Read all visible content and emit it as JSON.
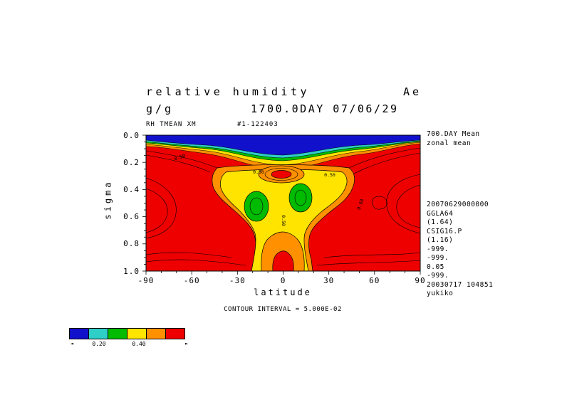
{
  "header": {
    "title": "relative humidity",
    "title_right": "Ae",
    "units": "g/g",
    "timestamp": "1700.0DAY 07/06/29",
    "var_id": "RH TMEAN XM",
    "run_id": "#1-122403"
  },
  "axes": {
    "ylabel": "sigma",
    "xlabel": "latitude",
    "yticks": [
      "0.0",
      "0.2",
      "0.4",
      "0.6",
      "0.8",
      "1.0"
    ],
    "xticks": [
      "-90",
      "-60",
      "-30",
      "0",
      "30",
      "60",
      "90"
    ]
  },
  "right_panel": {
    "lines": [
      "700.DAY Mean",
      "zonal mean"
    ],
    "meta": [
      "20070629000000",
      "GGLA64",
      "(1.64)",
      "CSIG16.P",
      "(1.16)",
      "-999.",
      "-999.",
      "0.05",
      "-999.",
      "20030717 104851",
      "yukiko"
    ]
  },
  "footer": {
    "contour_interval": "CONTOUR INTERVAL = 5.000E-02"
  },
  "palette": {
    "red": "#ee0000",
    "orange": "#ff9000",
    "yellow": "#ffe400",
    "green": "#00bb00",
    "cyan": "#2ecfc7",
    "blue": "#1111cc"
  },
  "colorbar": {
    "colors": [
      "#1111cc",
      "#2ecfc7",
      "#00bb00",
      "#ffe400",
      "#ff9000",
      "#ee0000"
    ],
    "labels": [
      "0.20",
      "0.40"
    ],
    "left_arrow": "◄",
    "right_arrow": "►"
  },
  "chart_data": {
    "type": "heatmap",
    "subtype": "filled-contour",
    "title": "relative humidity",
    "subtitle": "1700.0DAY 07/06/29",
    "annotation_right": "Ae",
    "variable": "RH TMEAN XM",
    "units": "g/g",
    "xlabel": "latitude",
    "ylabel": "sigma",
    "xlim": [
      -90,
      90
    ],
    "ylim_top_to_bottom": [
      0.0,
      1.0
    ],
    "xtick_values": [
      -90,
      -60,
      -30,
      0,
      30,
      60,
      90
    ],
    "ytick_values": [
      0.0,
      0.2,
      0.4,
      0.6,
      0.8,
      1.0
    ],
    "contour_interval": 0.05,
    "color_levels": [
      {
        "color": "blue",
        "range": "< 0.20"
      },
      {
        "color": "cyan",
        "range": "0.20 - 0.30"
      },
      {
        "color": "green",
        "range": "0.30 - 0.40"
      },
      {
        "color": "yellow",
        "range": "0.40 - 0.50"
      },
      {
        "color": "orange",
        "range": "0.50 - 0.60"
      },
      {
        "color": "red",
        "range": "> 0.60"
      }
    ],
    "contour_labels": [
      {
        "value": "0.50",
        "lat": -68,
        "sigma": 0.17
      },
      {
        "value": "0.50",
        "lat": -16,
        "sigma": 0.27
      },
      {
        "value": "0.50",
        "lat": 30,
        "sigma": 0.3
      },
      {
        "value": "0.50",
        "lat": -1,
        "sigma": 0.62
      },
      {
        "value": "0.60",
        "lat": 51,
        "sigma": 0.5
      }
    ],
    "features": [
      {
        "name": "dry-top-band",
        "desc": "RH < 0.20 (blue) layer from sigma 0.0 to ~0.15, deepest near the equator, thin near the poles"
      },
      {
        "name": "transition-bands",
        "desc": "thin cyan/green/yellow/orange stripes below the blue band marking RH 0.20-0.60"
      },
      {
        "name": "subtropical-dry-cores",
        "desc": "green ovals (RH 0.30-0.40) near lat -17 and lat +12 at sigma 0.4-0.6 inside the yellow column"
      },
      {
        "name": "equatorial-upper-moist-cell",
        "desc": "closed orange/red cell (RH > 0.50-0.60) near lat 0, sigma 0.25-0.33"
      },
      {
        "name": "equatorial-surface-moist-column",
        "desc": "orange column with red core (RH > 0.60) near lat 0, sigma 0.75-1.0"
      },
      {
        "name": "moist-background",
        "desc": "red field (RH > 0.60) over most latitudes below sigma ~0.2, with extra contour arcs near both poles"
      }
    ]
  }
}
